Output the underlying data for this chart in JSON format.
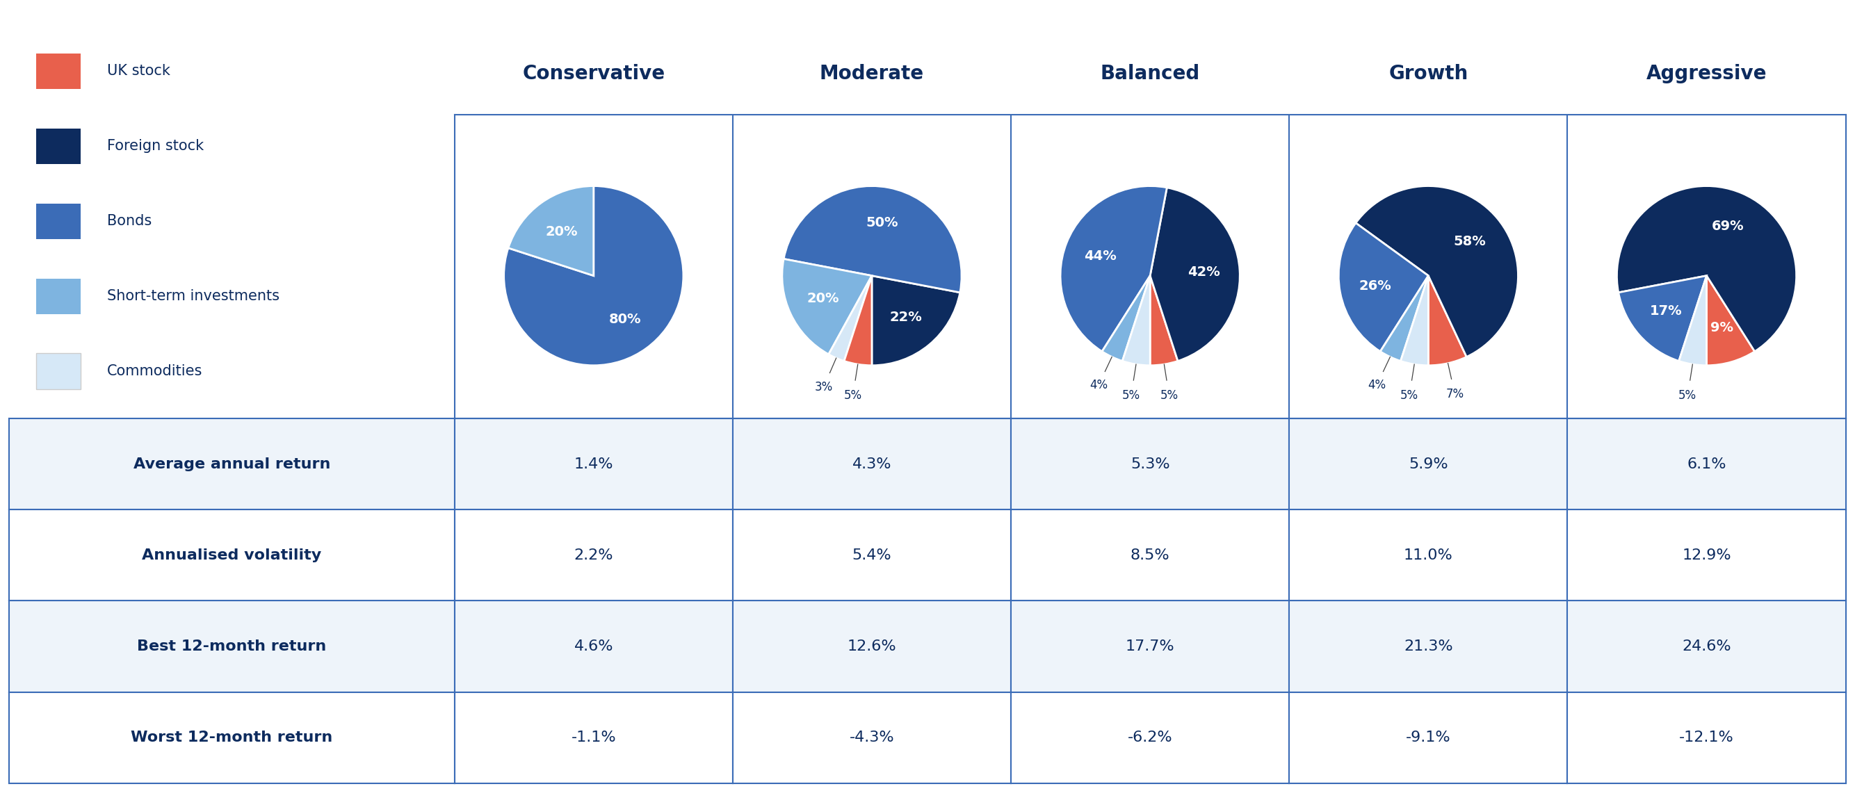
{
  "columns": [
    "Conservative",
    "Moderate",
    "Balanced",
    "Growth",
    "Aggressive"
  ],
  "slice_colors": [
    "#E8604C",
    "#0D2B5E",
    "#3B6CB7",
    "#7EB4E0",
    "#D6E8F7"
  ],
  "pie_configs": [
    {
      "sizes": [
        80,
        20
      ],
      "colors_idx": [
        2,
        3
      ],
      "inside": [
        "80%",
        "20%"
      ],
      "startangle": 162
    },
    {
      "sizes": [
        22,
        50,
        20,
        3,
        5
      ],
      "colors_idx": [
        1,
        2,
        3,
        4,
        0
      ],
      "inside": [
        "22%",
        "50%",
        "20%",
        "3%",
        "5%"
      ],
      "startangle": 270
    },
    {
      "sizes": [
        5,
        42,
        44,
        4,
        5
      ],
      "colors_idx": [
        0,
        1,
        2,
        3,
        4
      ],
      "inside": [
        "5%",
        "42%",
        "44%",
        "4%",
        "5%"
      ],
      "startangle": 270
    },
    {
      "sizes": [
        7,
        58,
        26,
        4,
        5
      ],
      "colors_idx": [
        0,
        1,
        2,
        3,
        4
      ],
      "inside": [
        "7%",
        "58%",
        "26%",
        "4%",
        "5%"
      ],
      "startangle": 270
    },
    {
      "sizes": [
        9,
        69,
        17,
        5
      ],
      "colors_idx": [
        0,
        1,
        2,
        4
      ],
      "inside": [
        "9%",
        "69%",
        "17%",
        "5%"
      ],
      "startangle": 270
    }
  ],
  "table_rows": [
    {
      "label": "Average annual return",
      "values": [
        "1.4%",
        "4.3%",
        "5.3%",
        "5.9%",
        "6.1%"
      ]
    },
    {
      "label": "Annualised volatility",
      "values": [
        "2.2%",
        "5.4%",
        "8.5%",
        "11.0%",
        "12.9%"
      ]
    },
    {
      "label": "Best 12-month return",
      "values": [
        "4.6%",
        "12.6%",
        "17.7%",
        "21.3%",
        "24.6%"
      ]
    },
    {
      "label": "Worst 12-month return",
      "values": [
        "-1.1%",
        "-4.3%",
        "-6.2%",
        "-9.1%",
        "-12.1%"
      ]
    }
  ],
  "legend_items": [
    {
      "label": "UK stock",
      "color": "#E8604C"
    },
    {
      "label": "Foreign stock",
      "color": "#0D2B5E"
    },
    {
      "label": "Bonds",
      "color": "#3B6CB7"
    },
    {
      "label": "Short-term investments",
      "color": "#7EB4E0"
    },
    {
      "label": "Commodities",
      "color": "#D6E8F7"
    }
  ],
  "bg_color": "#FFFFFF",
  "table_row_bg_odd": "#EEF4FA",
  "table_row_bg_even": "#FFFFFF",
  "grid_color": "#3B6CB7",
  "text_color": "#0D2B5E",
  "col_header_fontsize": 20,
  "table_label_fontsize": 16,
  "table_val_fontsize": 16,
  "legend_fontsize": 15,
  "pie_label_inside_fontsize": 14,
  "pie_label_outside_fontsize": 12
}
